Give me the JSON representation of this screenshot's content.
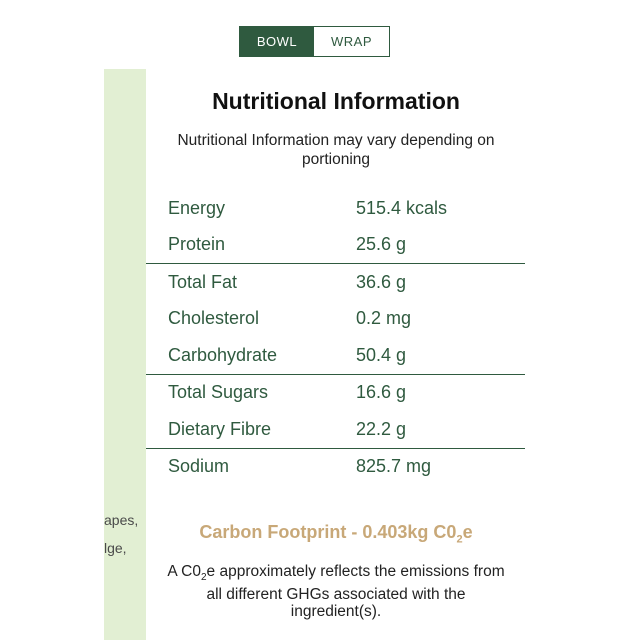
{
  "toggle": {
    "bowl_label": "BOWL",
    "wrap_label": "WRAP",
    "selected": "BOWL"
  },
  "side_cut_text": [
    "apes,",
    "lge,"
  ],
  "title": "Nutritional Information",
  "subtitle": "Nutritional Information may vary depending on portioning",
  "nutrition": [
    {
      "label": "Energy",
      "value": "515.4 kcals"
    },
    {
      "label": "Protein",
      "value": "25.6 g"
    },
    {
      "label": "Total Fat",
      "value": "36.6 g"
    },
    {
      "label": "Cholesterol",
      "value": "0.2 mg"
    },
    {
      "label": "Carbohydrate",
      "value": "50.4 g"
    },
    {
      "label": "Total Sugars",
      "value": "16.6 g"
    },
    {
      "label": "Dietary Fibre",
      "value": "22.2 g"
    },
    {
      "label": "Sodium",
      "value": "825.7 mg"
    }
  ],
  "carbon": {
    "title_prefix": "Carbon Footprint - 0.403kg C0",
    "title_sub": "2",
    "title_suffix": "e",
    "note_prefix": "A C0",
    "note_sub": "2",
    "note_suffix": "e approximately reflects the emissions from all different GHGs associated with the ingredient(s)."
  },
  "colors": {
    "brand_green": "#2f5a3f",
    "panel_green": "#e2efd3",
    "carbon_tan": "#c8a878"
  }
}
